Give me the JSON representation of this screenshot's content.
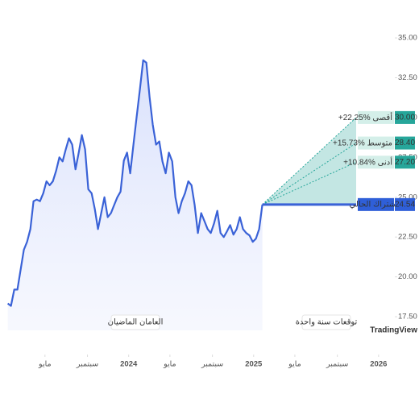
{
  "chart_data": {
    "type": "line",
    "color": "#3a62d7",
    "x": [
      2023.032,
      2023.058,
      2023.084,
      2023.109,
      2023.135,
      2023.161,
      2023.187,
      2023.213,
      2023.238,
      2023.264,
      2023.29,
      2023.316,
      2023.342,
      2023.367,
      2023.393,
      2023.419,
      2023.445,
      2023.471,
      2023.496,
      2023.522,
      2023.548,
      2023.574,
      2023.6,
      2023.625,
      2023.651,
      2023.677,
      2023.703,
      2023.729,
      2023.754,
      2023.78,
      2023.806,
      2023.832,
      2023.858,
      2023.883,
      2023.909,
      2023.935,
      2023.961,
      2023.987,
      2024.012,
      2024.038,
      2024.064,
      2024.09,
      2024.116,
      2024.141,
      2024.167,
      2024.193,
      2024.219,
      2024.245,
      2024.27,
      2024.296,
      2024.322,
      2024.348,
      2024.374,
      2024.399,
      2024.425,
      2024.451,
      2024.477,
      2024.503,
      2024.528,
      2024.554,
      2024.58,
      2024.606,
      2024.632,
      2024.657,
      2024.683,
      2024.709,
      2024.735,
      2024.761,
      2024.786,
      2024.812,
      2024.838,
      2024.864,
      2024.89,
      2024.915,
      2024.941,
      2024.967,
      2024.993,
      2025.018,
      2025.044,
      2025.07
    ],
    "values": [
      18.33,
      18.18,
      19.2,
      19.2,
      20.45,
      21.7,
      22.2,
      23.0,
      24.75,
      24.85,
      24.75,
      25.25,
      26.0,
      25.75,
      26.0,
      26.65,
      27.5,
      27.25,
      28.0,
      28.7,
      28.3,
      26.75,
      27.8,
      28.9,
      28.0,
      25.5,
      25.25,
      24.25,
      23.0,
      24.0,
      25.0,
      23.75,
      24.0,
      24.5,
      25.0,
      25.35,
      27.3,
      27.8,
      26.5,
      28.3,
      30.05,
      31.8,
      33.6,
      33.45,
      31.3,
      29.55,
      28.3,
      28.5,
      27.25,
      26.5,
      27.8,
      27.25,
      25.0,
      24.0,
      24.75,
      25.25,
      26.0,
      25.75,
      24.5,
      22.75,
      24.0,
      23.5,
      23.0,
      22.75,
      23.35,
      24.15,
      22.75,
      22.5,
      22.85,
      23.25,
      22.65,
      23.0,
      23.75,
      23.0,
      22.75,
      22.6,
      22.2,
      22.4,
      23.0,
      24.54
    ],
    "xlim": [
      2022.97,
      2026.13
    ],
    "ylim": [
      16,
      37
    ],
    "xticks": [
      {
        "value": 2023.33,
        "label": "مايو"
      },
      {
        "value": 2023.67,
        "label": "سبتمبر"
      },
      2024,
      {
        "value": 2024.33,
        "label": "مايو"
      },
      {
        "value": 2024.67,
        "label": "سبتمبر"
      },
      2025,
      {
        "value": 2025.33,
        "label": "مايو"
      },
      {
        "value": 2025.67,
        "label": "سبتمبر"
      },
      2026
    ],
    "yticks": [
      {
        "value": 17.5,
        "label": "17.50"
      },
      {
        "value": 20,
        "label": "20.00"
      },
      {
        "value": 22.5,
        "label": "22.50"
      },
      {
        "value": 25,
        "label": "25.00"
      },
      {
        "value": 27.5,
        "label": "27.50"
      },
      {
        "value": 30,
        "label": "30.00"
      },
      {
        "value": 32.5,
        "label": "32.50"
      },
      {
        "value": 35,
        "label": "35.00"
      }
    ],
    "forecast": {
      "high": {
        "value": 30,
        "value_label": "30.00",
        "change": "+22.25%",
        "label": "أقصى"
      },
      "average": {
        "value": 28.4,
        "value_label": "28.40",
        "change": "+15.73%",
        "label": "متوسط"
      },
      "low": {
        "value": 27.2,
        "value_label": "27.20",
        "change": "+10.84%",
        "label": "أدنى"
      },
      "current": {
        "value": 24.54,
        "value_label": "24.54",
        "label": "الاشتراك الحالي"
      }
    },
    "period_labels": [
      "العامان الماضيان",
      "توقعات سنة واحدة"
    ],
    "brand": "TradingView"
  }
}
